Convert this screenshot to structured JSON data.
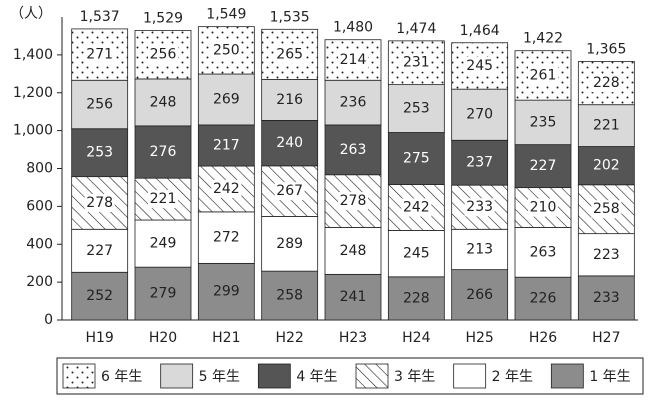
{
  "chart_data": {
    "type": "bar",
    "stacked": true,
    "y_label": "（人）",
    "categories": [
      "H19",
      "H20",
      "H21",
      "H22",
      "H23",
      "H24",
      "H25",
      "H26",
      "H27"
    ],
    "series": [
      {
        "name": "1 年生",
        "color": "#8c8c8c",
        "values": [
          252,
          279,
          299,
          258,
          241,
          228,
          266,
          226,
          233
        ]
      },
      {
        "name": "2 年生",
        "color": "#ffffff",
        "values": [
          227,
          249,
          272,
          289,
          248,
          245,
          213,
          263,
          223
        ]
      },
      {
        "name": "3 年生",
        "color": "#ffffff",
        "pattern": "hatch",
        "values": [
          278,
          221,
          242,
          267,
          278,
          242,
          233,
          210,
          258
        ]
      },
      {
        "name": "4 年生",
        "color": "#555555",
        "values": [
          253,
          276,
          217,
          240,
          263,
          275,
          237,
          227,
          202
        ]
      },
      {
        "name": "5 年生",
        "color": "#d9d9d9",
        "values": [
          256,
          248,
          269,
          216,
          236,
          253,
          270,
          235,
          221
        ]
      },
      {
        "name": "6 年生",
        "color": "#ffffff",
        "pattern": "dots",
        "values": [
          271,
          256,
          250,
          265,
          214,
          231,
          245,
          261,
          228
        ]
      }
    ],
    "totals": {
      "values": [
        1537,
        1529,
        1549,
        1535,
        1480,
        1474,
        1464,
        1422,
        1365
      ],
      "value_labels": [
        "1,537",
        "1,529",
        "1,549",
        "1,535",
        "1,480",
        "1,474",
        "1,464",
        "1,422",
        "1,365"
      ]
    },
    "ylim": [
      0,
      1600
    ],
    "yticks": [
      0,
      200,
      400,
      600,
      800,
      {
        "value": 1000,
        "label": "1,000"
      },
      {
        "value": 1200,
        "label": "1,200"
      },
      {
        "value": 1400,
        "label": "1,400"
      }
    ],
    "legend": "bottom"
  }
}
